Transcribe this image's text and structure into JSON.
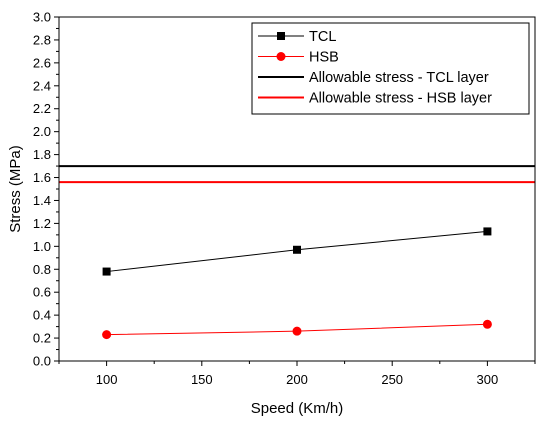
{
  "chart_data": {
    "type": "line",
    "xlabel": "Speed (Km/h)",
    "ylabel": "Stress (MPa)",
    "xlim": [
      75,
      325
    ],
    "ylim": [
      0.0,
      3.0
    ],
    "x_ticks": [
      100,
      150,
      200,
      250,
      300
    ],
    "x_tick_labels": [
      "100",
      "150",
      "200",
      "250",
      "300"
    ],
    "y_ticks": [
      0.0,
      0.2,
      0.4,
      0.6,
      0.8,
      1.0,
      1.2,
      1.4,
      1.6,
      1.8,
      2.0,
      2.2,
      2.4,
      2.6,
      2.8,
      3.0
    ],
    "y_tick_labels": [
      "0.0",
      "0.2",
      "0.4",
      "0.6",
      "0.8",
      "1.0",
      "1.2",
      "1.4",
      "1.6",
      "1.8",
      "2.0",
      "2.2",
      "2.4",
      "2.6",
      "2.8",
      "3.0"
    ],
    "grid": false,
    "legend_position": "top-right",
    "series": [
      {
        "name": "TCL",
        "marker": "square",
        "color": "#000000",
        "x": [
          100,
          200,
          300
        ],
        "y": [
          0.78,
          0.97,
          1.13
        ]
      },
      {
        "name": "HSB",
        "marker": "circle",
        "color": "#ff0000",
        "x": [
          100,
          200,
          300
        ],
        "y": [
          0.23,
          0.26,
          0.32
        ]
      }
    ],
    "reference_lines": [
      {
        "name": "Allowable stress - TCL layer",
        "y": 1.7,
        "color": "#000000"
      },
      {
        "name": "Allowable stress - HSB layer",
        "y": 1.56,
        "color": "#ff0000"
      }
    ]
  }
}
